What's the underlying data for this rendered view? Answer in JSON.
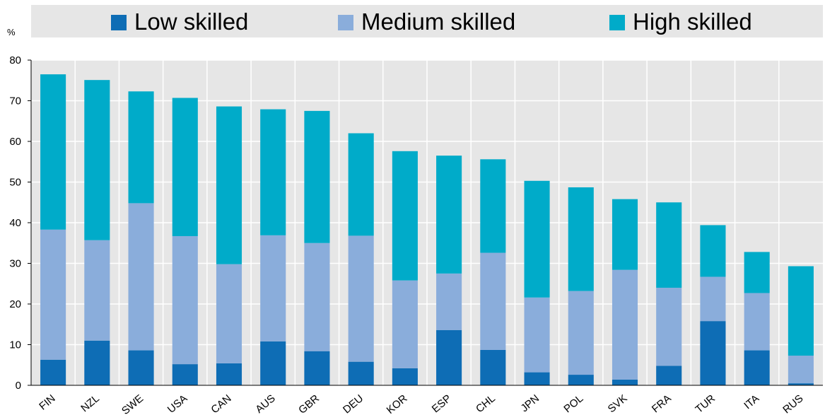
{
  "chart_data": {
    "type": "bar",
    "stacked": true,
    "ylabel": "%",
    "ylim": [
      0,
      80
    ],
    "yticks": [
      0,
      10,
      20,
      30,
      40,
      50,
      60,
      70,
      80
    ],
    "grid": true,
    "legend_position": "top",
    "categories": [
      "FIN",
      "NZL",
      "SWE",
      "USA",
      "CAN",
      "AUS",
      "GBR",
      "DEU",
      "KOR",
      "ESP",
      "CHL",
      "JPN",
      "POL",
      "SVK",
      "FRA",
      "TUR",
      "ITA",
      "RUS"
    ],
    "series": [
      {
        "name": "Low skilled",
        "color": "#0e6db5",
        "values": [
          6.3,
          11,
          8.6,
          5.2,
          5.4,
          10.8,
          8.4,
          5.8,
          4.2,
          13.6,
          8.7,
          3.2,
          2.6,
          1.4,
          4.8,
          15.8,
          8.6,
          0.5
        ]
      },
      {
        "name": "Medium skilled",
        "color": "#8aaddb",
        "values": [
          32,
          24.7,
          36.2,
          31.5,
          24.4,
          26.1,
          26.6,
          31,
          21.6,
          13.9,
          23.9,
          18.4,
          20.6,
          27,
          19.2,
          10.9,
          14.1,
          6.8
        ]
      },
      {
        "name": "High skilled",
        "color": "#00abc9",
        "values": [
          38.2,
          39.4,
          27.5,
          34,
          38.8,
          31,
          32.5,
          25.2,
          31.8,
          29,
          23,
          28.7,
          25.5,
          17.4,
          21,
          12.7,
          10.1,
          22
        ]
      }
    ]
  }
}
